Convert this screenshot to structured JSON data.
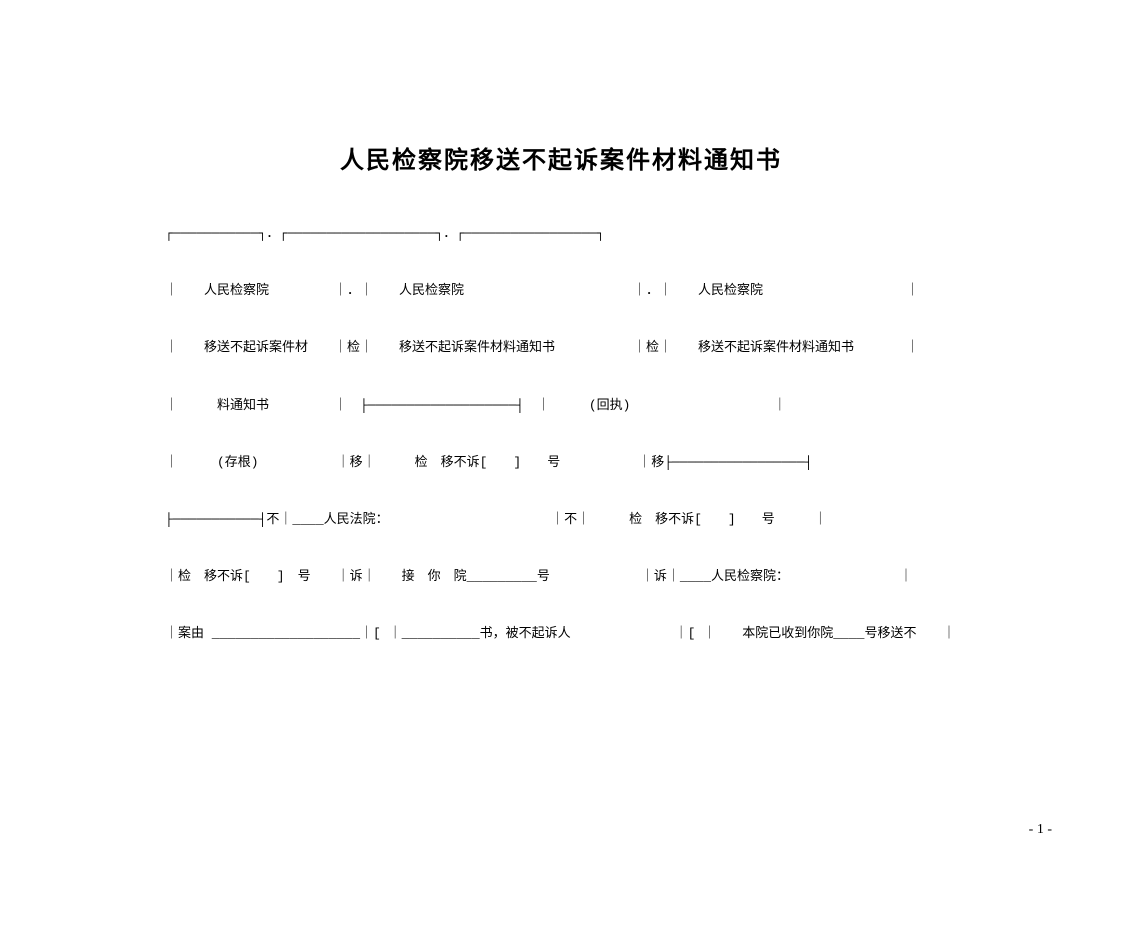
{
  "document": {
    "title": "人民检察院移送不起诉案件材料通知书",
    "page_number": "- 1 -",
    "rows": {
      "r1": "┌───────────┐．┌───────────────────┐．┌─────────────────┐",
      "r2": "｜　　人民检察院　　　　　｜．｜　　人民检察院　　　　　　　　　　　　　｜．｜　　人民检察院　　　　　　　　　　　｜",
      "r3": "｜　　移送不起诉案件材　　｜检｜　　移送不起诉案件材料通知书　　　　　　｜检｜　　移送不起诉案件材料通知书　　　　｜",
      "r4": "｜　　　料通知书　　　　　｜　├───────────────────┤　｜　　　(回执)　　　　　　　　　　　｜",
      "r5": "｜　　　(存根)　　　　　　｜移｜　　　检　移不诉[　　]　　号　　　　　　｜移├─────────────────┤",
      "r6": "├───────────┤不｜____人民法院：　　　　　　　　　　　　　｜不｜　　　检　移不诉[　　]　　号　　　｜",
      "r7": "｜检　移不诉[　　]　号　　｜诉｜　　接　你　院_________号　　　　　　　｜诉｜____人民检察院：　　　　　　　　　｜",
      "r8": "｜案由 ___________________｜[ ｜__________书，被不起诉人　　　　　　　　｜[ ｜　　本院已收到你院____号移送不　　｜"
    }
  }
}
